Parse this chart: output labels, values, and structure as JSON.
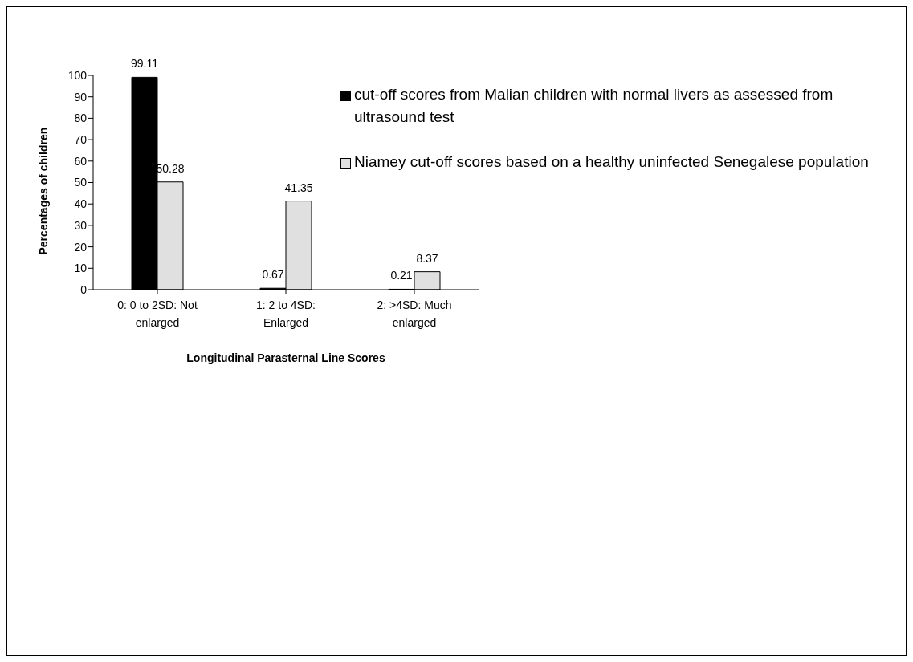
{
  "chart_data": {
    "type": "bar",
    "xlabel": "Longitudinal Parasternal Line Scores",
    "ylabel": "Percentages of children",
    "categories": [
      "0: 0 to 2SD: Not enlarged",
      "1: 2 to 4SD: Enlarged",
      "2: >4SD: Much enlarged"
    ],
    "series": [
      {
        "name": "cut-off scores from Malian children with normal livers as assessed from ultrasound test",
        "color": "#000000",
        "values": [
          99.11,
          0.67,
          0.21
        ]
      },
      {
        "name": "Niamey cut-off scores based on a healthy uninfected Senegalese population",
        "color": "#e0e0e0",
        "values": [
          50.28,
          41.35,
          8.37
        ]
      }
    ],
    "ylim": [
      0,
      100
    ],
    "yticks": [
      0,
      10,
      20,
      30,
      40,
      50,
      60,
      70,
      80,
      90,
      100
    ],
    "grid": false,
    "legend": "top right",
    "data_labels": true
  }
}
